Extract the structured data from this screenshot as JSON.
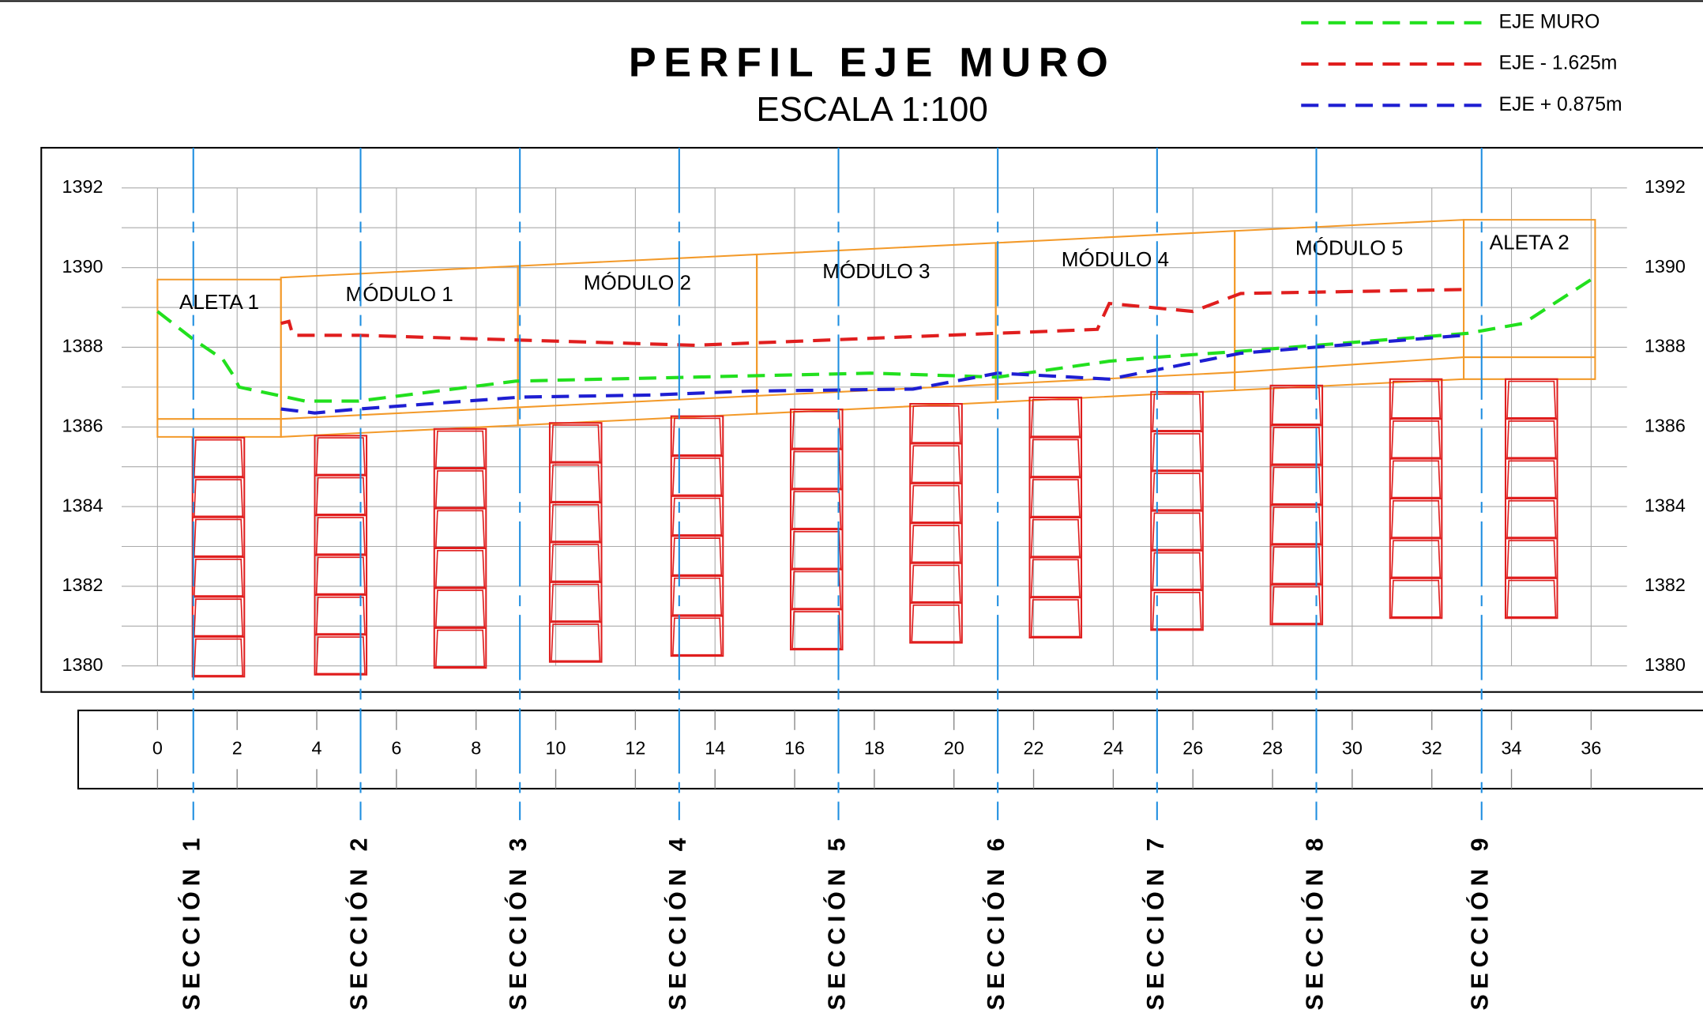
{
  "chart_data": {
    "type": "line",
    "title": "PERFIL EJE MURO",
    "subtitle": "ESCALA 1:100",
    "xlim": [
      -0.9,
      36.9
    ],
    "ylim": [
      1380,
      1392
    ],
    "xticks": [
      0,
      2,
      4,
      6,
      8,
      10,
      12,
      14,
      16,
      18,
      20,
      22,
      24,
      26,
      28,
      30,
      32,
      34,
      36
    ],
    "yticks": [
      1380,
      1382,
      1384,
      1386,
      1388,
      1390,
      1392
    ],
    "y_grid": [
      1380,
      1381,
      1382,
      1383,
      1384,
      1385,
      1386,
      1387,
      1388,
      1389,
      1390,
      1391,
      1392
    ],
    "grid": true,
    "legend": "top-right",
    "series": [
      {
        "name": "EJE MURO",
        "color": "#22e01e",
        "x": [
          0,
          0.9,
          1.64,
          1.9,
          2.05,
          3.7,
          5.05,
          9.0,
          17.9,
          21.1,
          23.9,
          25.1,
          27.2,
          32.9,
          34.3,
          36
        ],
        "values": [
          1388.9,
          1388.2,
          1387.7,
          1387.3,
          1387.0,
          1386.65,
          1386.65,
          1387.15,
          1387.35,
          1387.25,
          1387.65,
          1387.75,
          1387.9,
          1388.35,
          1388.6,
          1389.7
        ]
      },
      {
        "name": "EJE - 1.625m",
        "color": "#e01e1e",
        "x": [
          3.1,
          3.3,
          3.4,
          5.05,
          13.5,
          23.6,
          23.9,
          26,
          27.2,
          32.8
        ],
        "values": [
          1388.6,
          1388.65,
          1388.3,
          1388.3,
          1388.05,
          1388.45,
          1389.1,
          1388.9,
          1389.35,
          1389.45
        ]
      },
      {
        "name": "EJE + 0.875m",
        "color": "#1e1ed2",
        "x": [
          3.1,
          3.95,
          5.05,
          9.15,
          12.4,
          14.9,
          18.97,
          21.1,
          23.9,
          27.2,
          32.8
        ],
        "values": [
          1386.45,
          1386.35,
          1386.45,
          1386.75,
          1386.8,
          1386.9,
          1386.95,
          1387.35,
          1387.2,
          1387.85,
          1388.3
        ]
      }
    ],
    "modules": [
      {
        "label": "ALETA 1",
        "x": [
          0,
          3.1
        ],
        "top": [
          1389.7,
          1389.7
        ],
        "bottom": [
          1385.75,
          1385.75
        ],
        "inner": [
          1386.2,
          1386.2
        ]
      },
      {
        "label": "MÓDULO 1",
        "x": [
          3.1,
          9.05
        ],
        "top": [
          1389.75,
          1390.04
        ],
        "bottom": [
          1385.75,
          1386.04
        ],
        "inner": [
          1386.2,
          1386.49
        ]
      },
      {
        "label": "MÓDULO 2",
        "x": [
          9.05,
          15.05
        ],
        "top": [
          1390.04,
          1390.33
        ],
        "bottom": [
          1386.04,
          1386.33
        ],
        "inner": [
          1386.49,
          1386.78
        ]
      },
      {
        "label": "MÓDULO 3",
        "x": [
          15.05,
          21.05
        ],
        "top": [
          1390.33,
          1390.62
        ],
        "bottom": [
          1386.33,
          1386.62
        ],
        "inner": [
          1386.78,
          1387.07
        ]
      },
      {
        "label": "MÓDULO 4",
        "x": [
          21.05,
          27.05
        ],
        "top": [
          1390.62,
          1390.92
        ],
        "bottom": [
          1386.62,
          1386.92
        ],
        "inner": [
          1387.07,
          1387.37
        ]
      },
      {
        "label": "MÓDULO 5",
        "x": [
          27.05,
          32.8
        ],
        "top": [
          1390.92,
          1391.2
        ],
        "bottom": [
          1386.92,
          1387.2
        ],
        "inner": [
          1387.37,
          1387.75
        ]
      },
      {
        "label": "ALETA 2",
        "x": [
          32.8,
          36.1
        ],
        "top": [
          1391.2,
          1391.2
        ],
        "bottom": [
          1387.2,
          1387.2
        ],
        "inner": [
          1387.75,
          1387.75
        ]
      }
    ],
    "columns": [
      {
        "x": 1.53,
        "top": 1385.73,
        "bottom": 1379.73
      },
      {
        "x": 4.6,
        "top": 1385.78,
        "bottom": 1379.78
      },
      {
        "x": 7.6,
        "top": 1385.95,
        "bottom": 1379.95
      },
      {
        "x": 10.5,
        "top": 1386.1,
        "bottom": 1380.1
      },
      {
        "x": 13.55,
        "top": 1386.27,
        "bottom": 1380.25
      },
      {
        "x": 16.55,
        "top": 1386.44,
        "bottom": 1380.41
      },
      {
        "x": 19.55,
        "top": 1386.58,
        "bottom": 1380.58
      },
      {
        "x": 22.55,
        "top": 1386.74,
        "bottom": 1380.71
      },
      {
        "x": 25.6,
        "top": 1386.88,
        "bottom": 1380.9
      },
      {
        "x": 28.6,
        "top": 1387.04,
        "bottom": 1381.04
      },
      {
        "x": 31.6,
        "top": 1387.2,
        "bottom": 1381.2
      },
      {
        "x": 34.5,
        "top": 1387.2,
        "bottom": 1381.2
      }
    ],
    "blocks_per_column": 6,
    "block_width": 1.3,
    "sections": [
      {
        "label": "SECCIÓN 1",
        "x": 0.9
      },
      {
        "label": "SECCIÓN 2",
        "x": 5.1
      },
      {
        "label": "SECCIÓN 3",
        "x": 9.1
      },
      {
        "label": "SECCIÓN 4",
        "x": 13.1
      },
      {
        "label": "SECCIÓN 5",
        "x": 17.1
      },
      {
        "label": "SECCIÓN 6",
        "x": 21.1
      },
      {
        "label": "SECCIÓN 7",
        "x": 25.1
      },
      {
        "label": "SECCIÓN 8",
        "x": 29.1
      },
      {
        "label": "SECCIÓN 9",
        "x": 33.25
      }
    ]
  }
}
